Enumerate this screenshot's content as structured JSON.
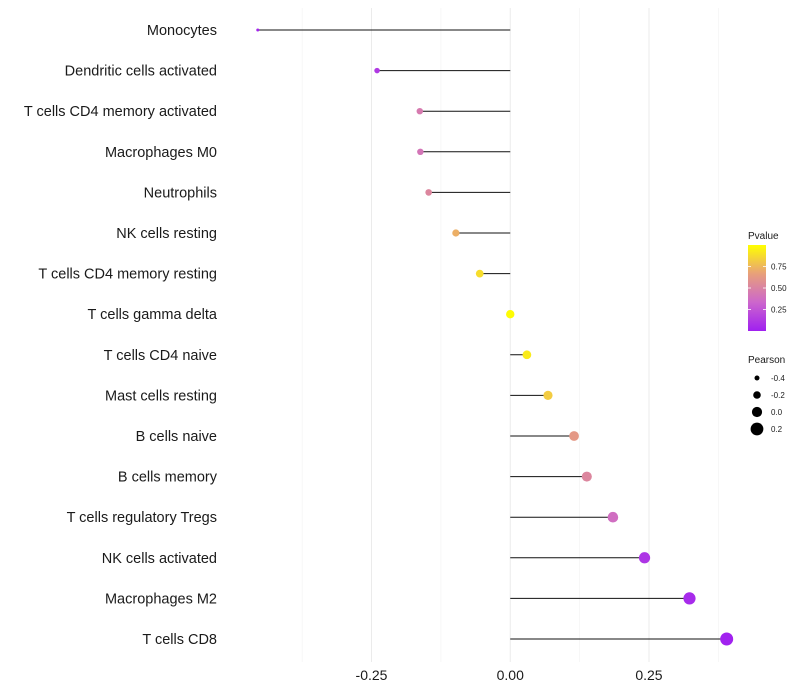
{
  "chart_data": {
    "type": "lollipop",
    "title": "",
    "xlabel": "",
    "ylabel": "",
    "xlim": [
      -0.505,
      0.405
    ],
    "x_ticks": [
      -0.25,
      0.0,
      0.25
    ],
    "x_tick_labels": [
      "-0.25",
      "0.00",
      "0.25"
    ],
    "x_minor_gridlines": [
      -0.375,
      -0.125,
      0.125,
      0.375
    ],
    "grid": true,
    "baseline": 0,
    "categories": [
      "Monocytes",
      "Dendritic cells activated",
      "T cells CD4 memory activated",
      "Macrophages M0",
      "Neutrophils",
      "NK cells resting",
      "T cells CD4 memory resting",
      "T cells gamma delta",
      "T cells CD4 naive",
      "Mast cells resting",
      "B cells naive",
      "B cells memory",
      "T cells regulatory  Tregs ",
      "NK cells activated",
      "Macrophages M2",
      "T cells CD8"
    ],
    "values": [
      -0.455,
      -0.24,
      -0.163,
      -0.162,
      -0.147,
      -0.098,
      -0.055,
      0.0,
      0.03,
      0.068,
      0.115,
      0.138,
      0.185,
      0.242,
      0.323,
      0.39
    ],
    "pvalues": [
      0.03,
      0.12,
      0.45,
      0.42,
      0.52,
      0.72,
      0.88,
      0.99,
      0.93,
      0.82,
      0.62,
      0.52,
      0.38,
      0.1,
      0.05,
      0.01
    ],
    "legend": {
      "color": {
        "title": "Pvalue",
        "ticks": [
          0.25,
          0.5,
          0.75
        ],
        "tick_labels": [
          "0.25",
          "0.50",
          "0.75"
        ],
        "range": [
          0,
          1
        ],
        "colors": [
          "#a020f0",
          "#cc66cc",
          "#e8a07a",
          "#ffff00"
        ]
      },
      "size": {
        "title": "Pearson",
        "values": [
          -0.4,
          -0.2,
          0.0,
          0.2
        ],
        "labels": [
          "-0.4",
          "-0.2",
          "0.0",
          "0.2"
        ]
      }
    }
  }
}
